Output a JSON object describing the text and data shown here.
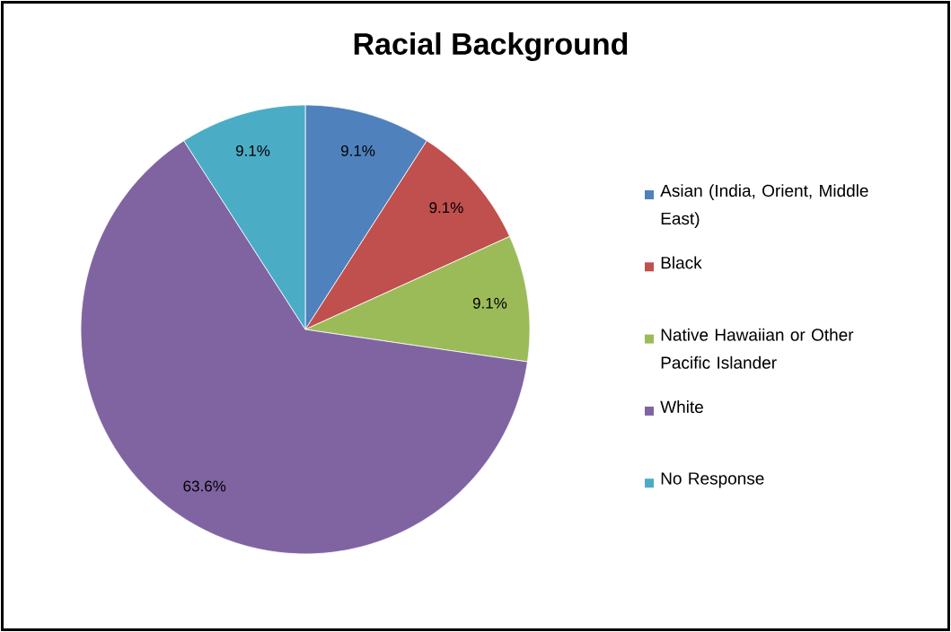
{
  "chart_data": {
    "type": "pie",
    "title": "Racial Background",
    "categories": [
      "Asian (India, Orient, Middle East)",
      "Black",
      "Native Hawaiian or Other Pacific Islander",
      "White",
      "No Response"
    ],
    "values": [
      9.1,
      9.1,
      9.1,
      63.6,
      9.1
    ],
    "colors": [
      "#4f81bd",
      "#c0504d",
      "#9bbb59",
      "#8064a2",
      "#4bacc6"
    ],
    "value_labels": [
      "9.1%",
      "9.1%",
      "9.1%",
      "63.6%",
      "9.1%"
    ],
    "legend": "right"
  }
}
